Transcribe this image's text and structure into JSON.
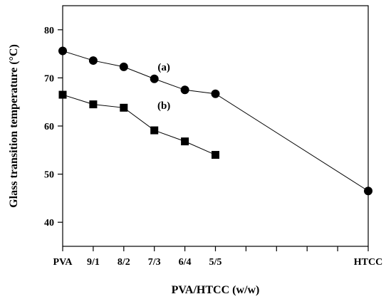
{
  "chart_data": {
    "type": "line",
    "categories": [
      "PVA",
      "9/1",
      "8/2",
      "7/3",
      "6/4",
      "5/5",
      "",
      "",
      "",
      "",
      "HTCC"
    ],
    "xlabel": "PVA/HTCC (w/w)",
    "ylabel": "Glass transition temperature (°C)",
    "ylim": [
      35,
      85
    ],
    "yticks": [
      40,
      50,
      60,
      70,
      80
    ],
    "grid": false,
    "legend": "none",
    "series": [
      {
        "name": "(a)",
        "marker": "circle",
        "x": [
          "PVA",
          "9/1",
          "8/2",
          "7/3",
          "6/4",
          "5/5",
          "HTCC"
        ],
        "values": [
          75.6,
          73.6,
          72.3,
          69.8,
          67.5,
          66.7,
          46.5
        ]
      },
      {
        "name": "(b)",
        "marker": "square",
        "x": [
          "PVA",
          "9/1",
          "8/2",
          "7/3",
          "6/4",
          "5/5"
        ],
        "values": [
          66.5,
          64.5,
          63.8,
          59.1,
          56.8,
          54.0
        ]
      }
    ],
    "colors": {
      "line": "#000000",
      "marker": "#000000",
      "background": "#ffffff"
    }
  }
}
